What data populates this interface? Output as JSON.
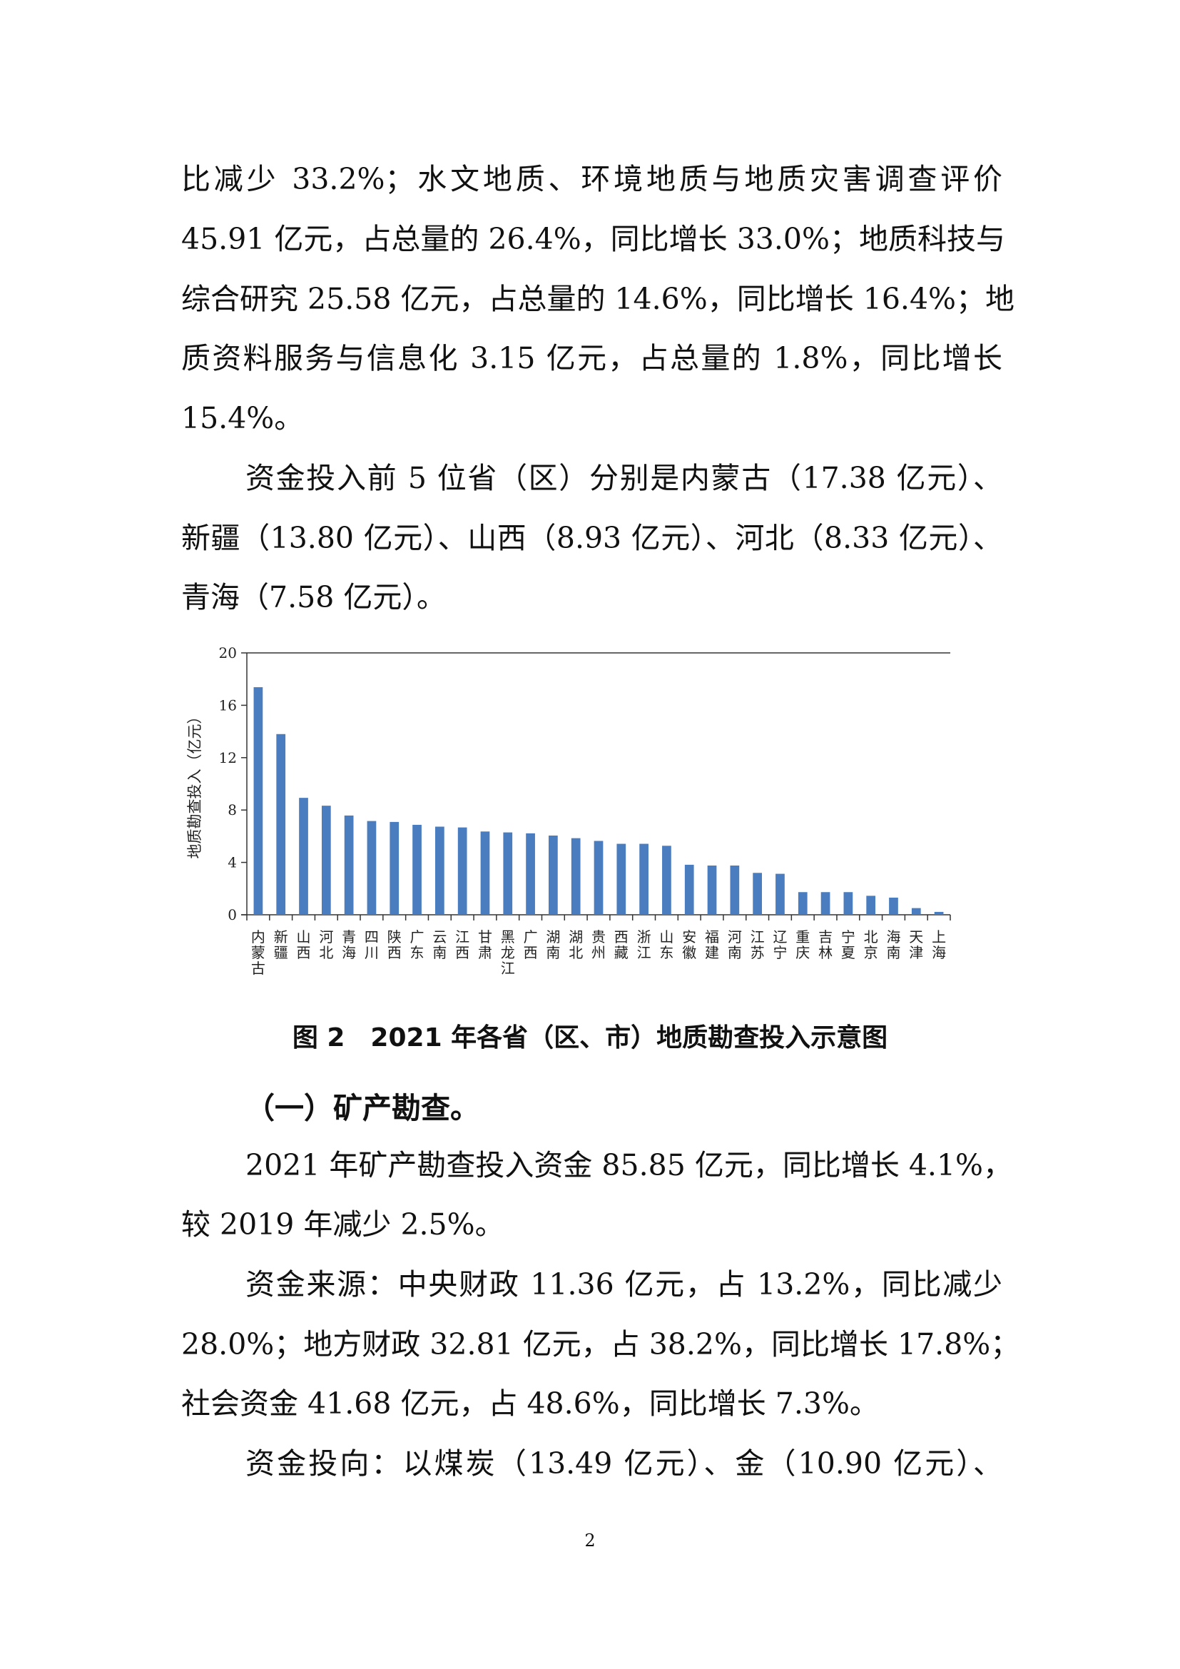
{
  "intro_lines": [
    "比减少 33.2%；水文地质、环境地质与地质灾害调查评价",
    "45.91 亿元，占总量的 26.4%，同比增长 33.0%；地质科技与",
    "综合研究 25.58 亿元，占总量的 14.6%，同比增长 16.4%；地",
    "质资料服务与信息化 3.15 亿元，占总量的 1.8%，同比增长",
    "15.4%。",
    "资金投入前 5 位省（区）分别是内蒙古（17.38 亿元）、",
    "新疆（13.80 亿元）、山西（8.93 亿元）、河北（8.33 亿元）、",
    "青海（7.58 亿元）。"
  ],
  "chart_data": {
    "type": "bar",
    "title": "",
    "xlabel": "",
    "ylabel": "地质勘查投入（亿元）",
    "ylim": [
      0,
      20
    ],
    "yticks": [
      "0",
      "4",
      "8",
      "12",
      "16",
      "20"
    ],
    "grid": false,
    "bar_color": "#4a7dbf",
    "categories": [
      "内蒙古",
      "新疆",
      "山西",
      "河北",
      "青海",
      "四川",
      "陕西",
      "广东",
      "云南",
      "江西",
      "甘肃",
      "黑龙江",
      "广西",
      "湖南",
      "湖北",
      "贵州",
      "西藏",
      "浙江",
      "山东",
      "安徽",
      "福建",
      "河南",
      "江苏",
      "辽宁",
      "重庆",
      "吉林",
      "宁夏",
      "北京",
      "海南",
      "天津",
      "上海"
    ],
    "values": [
      17.38,
      13.8,
      8.93,
      8.33,
      7.58,
      7.16,
      7.09,
      6.87,
      6.73,
      6.67,
      6.36,
      6.29,
      6.22,
      6.05,
      5.85,
      5.64,
      5.42,
      5.42,
      5.27,
      3.82,
      3.76,
      3.76,
      3.2,
      3.13,
      1.73,
      1.73,
      1.73,
      1.45,
      1.31,
      0.51,
      0.22
    ]
  },
  "caption": "图 2　2021 年各省（区、市）地质勘查投入示意图",
  "section_heading": "（一）矿产勘查。",
  "body_lines": [
    "2021 年矿产勘查投入资金 85.85 亿元，同比增长 4.1%，",
    "较 2019 年减少 2.5%。",
    "资金来源：中央财政 11.36 亿元，占 13.2%，同比减少",
    "28.0%；地方财政 32.81 亿元，占 38.2%，同比增长 17.8%；",
    "社会资金 41.68 亿元，占 48.6%，同比增长 7.3%。",
    "资金投向：以煤炭（13.49 亿元）、金（10.90 亿元）、"
  ],
  "page_number": "2"
}
